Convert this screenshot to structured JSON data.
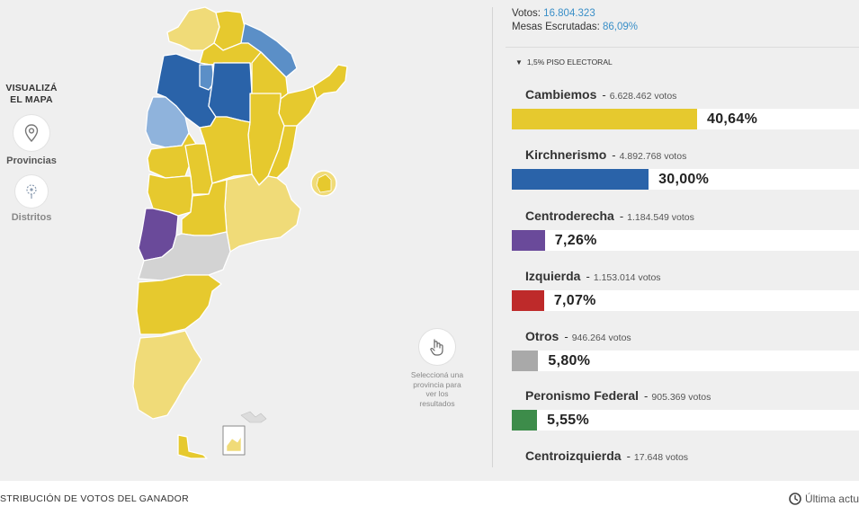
{
  "stats": {
    "votes_label": "Votos:",
    "votes_value": "16.804.323",
    "tables_label": "Mesas Escrutadas:",
    "tables_value": "86,09%"
  },
  "threshold": {
    "arrow": "▼",
    "label": "1,5% PISO ELECTORAL"
  },
  "map_mode": {
    "title_line1": "VISUALIZÁ",
    "title_line2": "EL MAPA",
    "options": [
      {
        "label": "Provincias",
        "icon": "map-pin-icon",
        "selected": true
      },
      {
        "label": "Distritos",
        "icon": "district-pin-icon",
        "selected": false
      }
    ]
  },
  "hint": {
    "icon": "hand-pointer-icon",
    "line1": "Seleccioná una",
    "line2": "provincia para",
    "line3": "ver los",
    "line4": "resultados"
  },
  "parties": [
    {
      "name": "Cambiemos",
      "dash": "-",
      "votes": "6.628.462 votos",
      "pct_label": "40,64%",
      "share": 40.64,
      "color": "#e6c92e"
    },
    {
      "name": "Kirchnerismo",
      "dash": "-",
      "votes": "4.892.768 votos",
      "pct_label": "30,00%",
      "share": 30.0,
      "color": "#2a63a9"
    },
    {
      "name": "Centroderecha",
      "dash": "-",
      "votes": "1.184.549 votos",
      "pct_label": "7,26%",
      "share": 7.26,
      "color": "#6a4a9a"
    },
    {
      "name": "Izquierda",
      "dash": "-",
      "votes": "1.153.014 votos",
      "pct_label": "7,07%",
      "share": 7.07,
      "color": "#be2a2a"
    },
    {
      "name": "Otros",
      "dash": "-",
      "votes": "946.264 votos",
      "pct_label": "5,80%",
      "share": 5.8,
      "color": "#a9a9a9"
    },
    {
      "name": "Peronismo Federal",
      "dash": "-",
      "votes": "905.369 votos",
      "pct_label": "5,55%",
      "share": 5.55,
      "color": "#3d8c4a"
    },
    {
      "name": "Centroizquierda",
      "dash": "-",
      "votes": "17.648 votos",
      "pct_label": "",
      "share": 0.11,
      "color": "#cccccc"
    }
  ],
  "map_colors": {
    "cambiemos": "#e6c92e",
    "cambiemos_light": "#f0db78",
    "cambiemos_pale": "#f5e6a6",
    "kirchnerismo": "#2a63a9",
    "kirchnerismo_mid": "#5b8fc7",
    "kirchnerismo_light": "#8fb3dc",
    "centroderecha": "#6a4a9a",
    "otros": "#d3d3d3"
  },
  "footer": {
    "left_text": "STRIBUCIÓN DE VOTOS DEL GANADOR",
    "right_text": "Última actu",
    "icon": "clock-icon"
  }
}
